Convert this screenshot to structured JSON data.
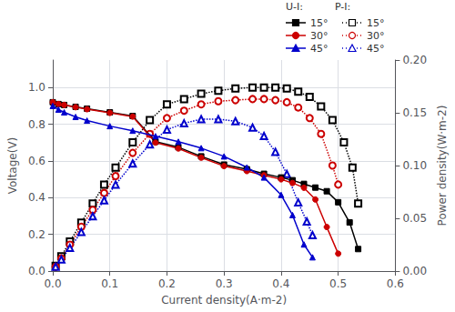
{
  "chart_data": {
    "type": "line",
    "x_label": "Current density(A·m-2)",
    "y_label": "Voltage(V)",
    "y2_label": "Power density(W·m-2)",
    "xlim": [
      0.0,
      0.6
    ],
    "ylim": [
      0.0,
      1.15
    ],
    "y2lim": [
      0.0,
      0.2
    ],
    "xticks": [
      {
        "value": 0.0,
        "label": "0.0"
      },
      0.1,
      0.2,
      0.3,
      0.4,
      0.5,
      0.6
    ],
    "yticks": [
      {
        "value": 0.0,
        "label": "0.0"
      },
      0.2,
      0.4,
      0.6,
      0.8,
      {
        "value": 1.0,
        "label": "1.0"
      }
    ],
    "y2ticks": [
      {
        "value": 0.0,
        "label": "0.00"
      },
      0.05,
      {
        "value": 0.1,
        "label": "0.10"
      },
      0.15,
      {
        "value": 0.2,
        "label": "0.20"
      }
    ],
    "grid": true,
    "legend": "upper right",
    "legend_title": "U-I:          P-I:",
    "series": [
      {
        "name": "15°",
        "color": "#000000",
        "marker": "square",
        "line_style": "solid",
        "axis": "y",
        "x": [
          0.0,
          0.01,
          0.02,
          0.04,
          0.06,
          0.1,
          0.14,
          0.18,
          0.22,
          0.26,
          0.3,
          0.34,
          0.37,
          0.4,
          0.42,
          0.44,
          0.46,
          0.48,
          0.5,
          0.52,
          0.535
        ],
        "values": [
          0.92,
          0.91,
          0.905,
          0.895,
          0.885,
          0.865,
          0.845,
          0.705,
          0.675,
          0.625,
          0.58,
          0.555,
          0.53,
          0.51,
          0.495,
          0.475,
          0.455,
          0.435,
          0.375,
          0.265,
          0.12
        ]
      },
      {
        "name": "30°",
        "color": "#cc0000",
        "marker": "circle",
        "line_style": "solid",
        "axis": "y",
        "x": [
          0.0,
          0.01,
          0.02,
          0.04,
          0.06,
          0.1,
          0.14,
          0.18,
          0.22,
          0.26,
          0.3,
          0.34,
          0.37,
          0.4,
          0.42,
          0.44,
          0.46,
          0.48,
          0.5
        ],
        "values": [
          0.92,
          0.91,
          0.905,
          0.893,
          0.882,
          0.862,
          0.842,
          0.7,
          0.668,
          0.618,
          0.572,
          0.545,
          0.522,
          0.5,
          0.48,
          0.454,
          0.39,
          0.24,
          0.095
        ]
      },
      {
        "name": "45°",
        "color": "#0000cc",
        "marker": "triangle",
        "line_style": "solid",
        "axis": "y",
        "x": [
          0.0,
          0.01,
          0.02,
          0.04,
          0.06,
          0.1,
          0.14,
          0.18,
          0.22,
          0.26,
          0.3,
          0.34,
          0.37,
          0.4,
          0.42,
          0.44,
          0.455
        ],
        "values": [
          0.9,
          0.88,
          0.865,
          0.84,
          0.82,
          0.79,
          0.765,
          0.735,
          0.705,
          0.67,
          0.625,
          0.565,
          0.51,
          0.415,
          0.305,
          0.145,
          0.075
        ]
      },
      {
        "name": "15°",
        "color": "#000000",
        "marker": "open-square",
        "line_style": "dotted",
        "axis": "y2",
        "x": [
          0.005,
          0.015,
          0.03,
          0.05,
          0.07,
          0.09,
          0.11,
          0.14,
          0.17,
          0.2,
          0.23,
          0.26,
          0.29,
          0.32,
          0.35,
          0.37,
          0.39,
          0.41,
          0.43,
          0.45,
          0.47,
          0.49,
          0.51,
          0.525,
          0.535
        ],
        "values": [
          0.005,
          0.014,
          0.028,
          0.046,
          0.064,
          0.082,
          0.098,
          0.122,
          0.143,
          0.158,
          0.163,
          0.168,
          0.171,
          0.173,
          0.174,
          0.174,
          0.174,
          0.173,
          0.17,
          0.165,
          0.156,
          0.143,
          0.122,
          0.098,
          0.064
        ]
      },
      {
        "name": "30°",
        "color": "#cc0000",
        "marker": "open-circle",
        "line_style": "dotted",
        "axis": "y2",
        "x": [
          0.005,
          0.015,
          0.03,
          0.05,
          0.07,
          0.09,
          0.11,
          0.14,
          0.17,
          0.2,
          0.23,
          0.26,
          0.29,
          0.32,
          0.35,
          0.37,
          0.39,
          0.41,
          0.43,
          0.45,
          0.47,
          0.49,
          0.5
        ],
        "values": [
          0.004,
          0.012,
          0.025,
          0.042,
          0.058,
          0.074,
          0.09,
          0.112,
          0.13,
          0.145,
          0.152,
          0.158,
          0.161,
          0.162,
          0.163,
          0.163,
          0.162,
          0.16,
          0.155,
          0.145,
          0.13,
          0.1,
          0.082
        ]
      },
      {
        "name": "45°",
        "color": "#0000cc",
        "marker": "open-triangle",
        "line_style": "dotted",
        "axis": "y2",
        "x": [
          0.005,
          0.015,
          0.03,
          0.05,
          0.07,
          0.09,
          0.11,
          0.14,
          0.17,
          0.2,
          0.23,
          0.26,
          0.29,
          0.32,
          0.35,
          0.37,
          0.39,
          0.41,
          0.43,
          0.445,
          0.455
        ],
        "values": [
          0.004,
          0.011,
          0.022,
          0.037,
          0.052,
          0.067,
          0.082,
          0.102,
          0.12,
          0.134,
          0.14,
          0.144,
          0.144,
          0.142,
          0.136,
          0.128,
          0.113,
          0.092,
          0.065,
          0.047,
          0.034
        ]
      }
    ]
  }
}
